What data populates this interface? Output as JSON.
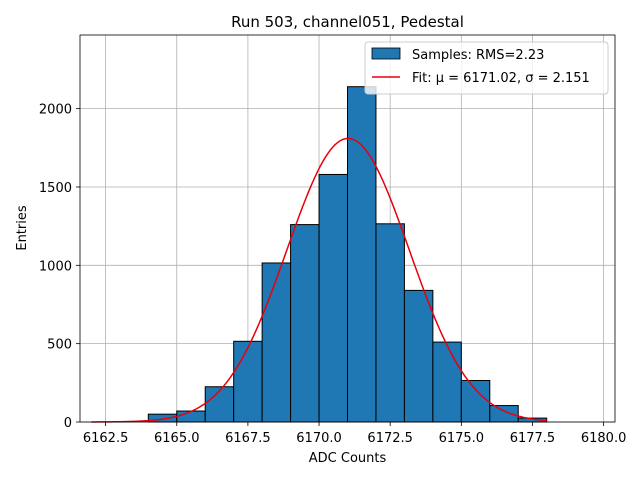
{
  "chart_data": {
    "type": "bar",
    "title": "Run 503, channel051, Pedestal",
    "xlabel": "ADC Counts",
    "ylabel": "Entries",
    "xlim": [
      6161.6,
      6180.4
    ],
    "ylim": [
      0,
      2470
    ],
    "x_ticks": [
      6162.5,
      6165.0,
      6167.5,
      6170.0,
      6172.5,
      6175.0,
      6177.5,
      6180.0
    ],
    "x_tick_labels": [
      "6162.5",
      "6165.0",
      "6167.5",
      "6170.0",
      "6172.5",
      "6175.0",
      "6177.5",
      "6180.0"
    ],
    "y_ticks": [
      0,
      500,
      1000,
      1500,
      2000
    ],
    "y_tick_labels": [
      "0",
      "500",
      "1000",
      "1500",
      "2000"
    ],
    "grid": true,
    "legend_position": "top-right",
    "bins": [
      {
        "x0": 6164,
        "x1": 6165,
        "value": 50
      },
      {
        "x0": 6165,
        "x1": 6166,
        "value": 70
      },
      {
        "x0": 6166,
        "x1": 6167,
        "value": 225
      },
      {
        "x0": 6167,
        "x1": 6168,
        "value": 515
      },
      {
        "x0": 6168,
        "x1": 6169,
        "value": 1015
      },
      {
        "x0": 6169,
        "x1": 6170,
        "value": 1260
      },
      {
        "x0": 6170,
        "x1": 6171,
        "value": 1580
      },
      {
        "x0": 6171,
        "x1": 6172,
        "value": 2140
      },
      {
        "x0": 6172,
        "x1": 6173,
        "value": 1265
      },
      {
        "x0": 6173,
        "x1": 6174,
        "value": 840
      },
      {
        "x0": 6174,
        "x1": 6175,
        "value": 510
      },
      {
        "x0": 6175,
        "x1": 6176,
        "value": 265
      },
      {
        "x0": 6176,
        "x1": 6177,
        "value": 105
      },
      {
        "x0": 6177,
        "x1": 6178,
        "value": 25
      }
    ],
    "fit": {
      "mu": 6171.02,
      "sigma": 2.151,
      "amplitude": 1810,
      "x_range": [
        6162,
        6178
      ]
    },
    "legend": [
      {
        "label": "Samples: RMS=2.23",
        "kind": "patch"
      },
      {
        "label": "Fit: μ = 6171.02, σ = 2.151",
        "kind": "line"
      }
    ],
    "colors": {
      "bar": "#1f77b4",
      "fit": "#e8000b"
    }
  }
}
